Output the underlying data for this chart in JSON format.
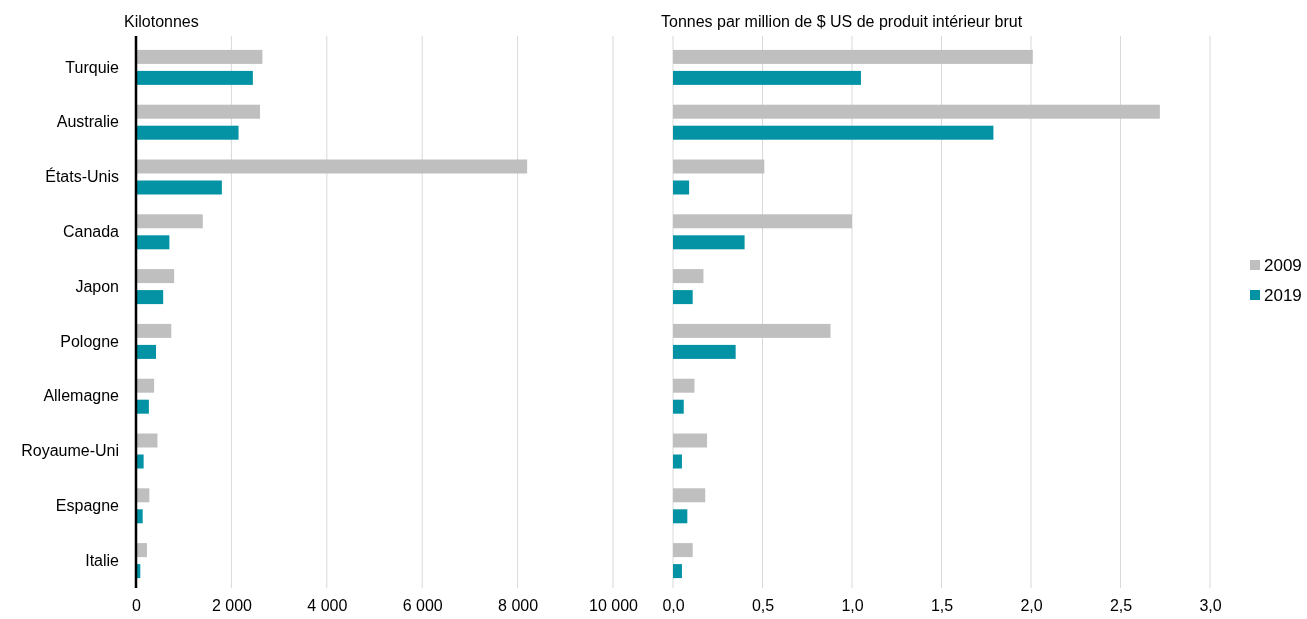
{
  "chart_data": [
    {
      "type": "bar",
      "orientation": "horizontal",
      "title": "Kilotonnes",
      "categories": [
        "Turquie",
        "Australie",
        "États-Unis",
        "Canada",
        "Japon",
        "Pologne",
        "Allemagne",
        "Royaume-Uni",
        "Espagne",
        "Italie"
      ],
      "series": [
        {
          "name": "2009",
          "color": "#bfbfbf",
          "values": [
            2650,
            2600,
            8200,
            1400,
            800,
            740,
            380,
            450,
            280,
            230
          ]
        },
        {
          "name": "2019",
          "color": "#0393a5",
          "values": [
            2450,
            2150,
            1800,
            700,
            570,
            420,
            270,
            160,
            140,
            90
          ]
        }
      ],
      "legend": "right",
      "xlim": [
        0,
        10000
      ],
      "xticks": [
        0,
        {
          "value": 2000,
          "label": "2 000"
        },
        {
          "value": 4000,
          "label": "4 000"
        },
        {
          "value": 6000,
          "label": "6 000"
        },
        {
          "value": 8000,
          "label": "8 000"
        },
        {
          "value": 10000,
          "label": "10 000"
        }
      ],
      "grid": "x"
    },
    {
      "type": "bar",
      "orientation": "horizontal",
      "title": "Tonnes par million de $ US de produit intérieur brut",
      "categories": [
        null,
        null,
        null,
        null,
        null,
        null,
        null,
        null,
        null,
        null
      ],
      "series": [
        {
          "color": "#bfbfbf",
          "values": [
            2.01,
            2.72,
            0.51,
            1.0,
            0.17,
            0.88,
            0.12,
            0.19,
            0.18,
            0.11
          ]
        },
        {
          "color": "#0393a5",
          "values": [
            1.05,
            1.79,
            0.09,
            0.4,
            0.11,
            0.35,
            0.06,
            0.05,
            0.08,
            0.05
          ]
        }
      ],
      "xlim": [
        0,
        3
      ],
      "xticks": [
        {
          "value": 0,
          "label": "0,0"
        },
        {
          "value": 0.5,
          "label": "0,5"
        },
        {
          "value": 1,
          "label": "1,0"
        },
        {
          "value": 1.5,
          "label": "1,5"
        },
        {
          "value": 2,
          "label": "2,0"
        },
        {
          "value": 2.5,
          "label": "2,5"
        },
        {
          "value": 3,
          "label": "3,0"
        }
      ],
      "grid": "x",
      "tick_labels": "x"
    }
  ]
}
